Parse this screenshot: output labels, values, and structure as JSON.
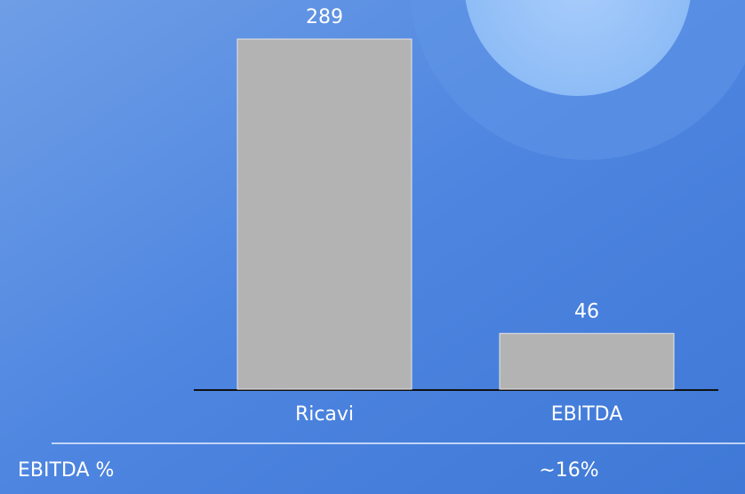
{
  "chart_data": {
    "type": "bar",
    "categories": [
      "Ricavi",
      "EBITDA"
    ],
    "values": [
      289,
      46
    ],
    "color": "#b3b3b3",
    "annotations": {
      "label": "EBITDA %",
      "text": "∼16%"
    }
  }
}
